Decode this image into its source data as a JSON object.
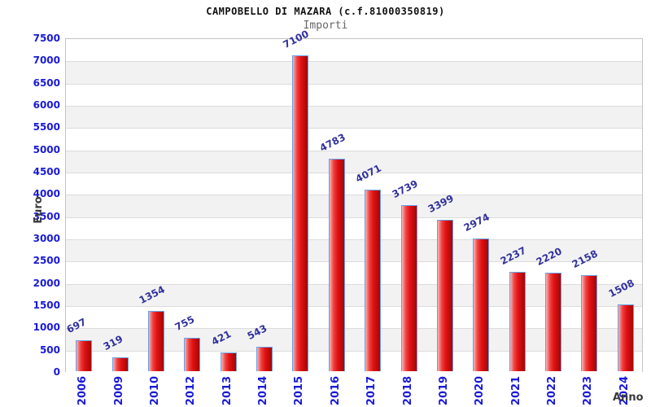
{
  "chart_data": {
    "type": "bar",
    "title": "CAMPOBELLO DI MAZARA (c.f.81000350819)",
    "subtitle": "Importi",
    "xlabel": "Anno",
    "ylabel": "Euro",
    "categories": [
      "2006",
      "2009",
      "2010",
      "2012",
      "2013",
      "2014",
      "2015",
      "2016",
      "2017",
      "2018",
      "2019",
      "2020",
      "2021",
      "2022",
      "2023",
      "2024"
    ],
    "values": [
      697,
      319,
      1354,
      755,
      421,
      543,
      7100,
      4783,
      4071,
      3739,
      3399,
      2974,
      2237,
      2220,
      2158,
      1508
    ],
    "ylim": [
      0,
      7500
    ],
    "ytick_step": 500,
    "grid": "horizontal-bands-alternating",
    "legend": "none",
    "bar_value_labels_rotated": true,
    "colors": {
      "bar_gradient": [
        "#f6b4b4",
        "#ee4040",
        "#e01111",
        "#a30707"
      ],
      "bar_border": "#68a1e8",
      "tick_label_blue": "#1a1ad9",
      "value_label_navy": "#32329e",
      "axis_title_gray": "#3a3a3a",
      "band_gray": "#f2f2f2",
      "band_white": "#ffffff",
      "gridline": "#dcdcdc",
      "plot_border": "#c4c4c4",
      "title_color": "#111111",
      "subtitle_color": "#666666"
    }
  }
}
